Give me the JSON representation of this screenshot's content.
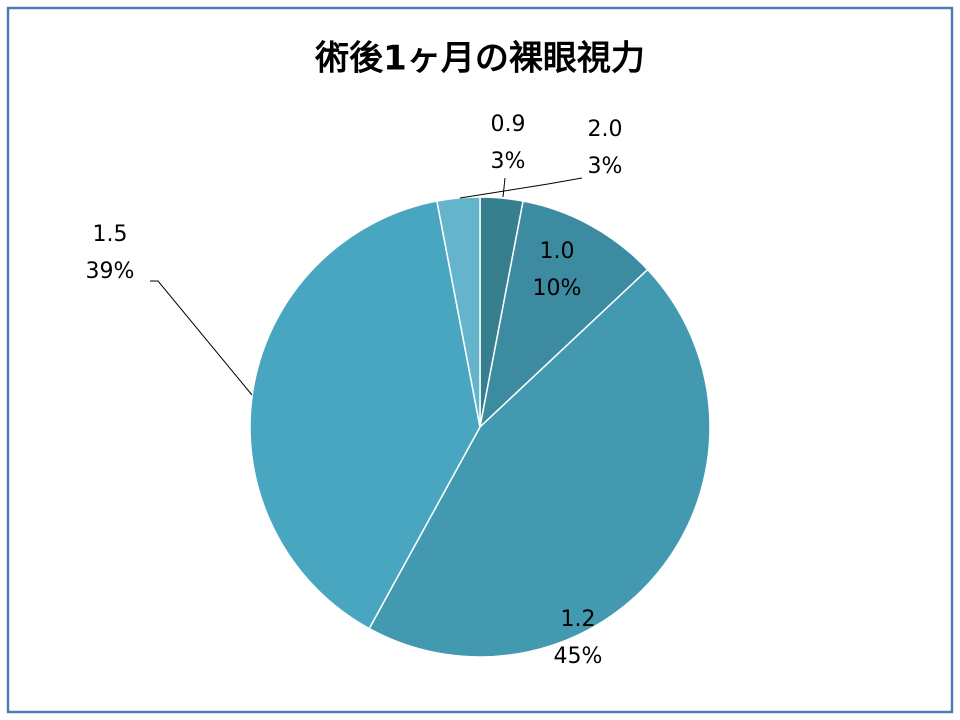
{
  "chart_data": {
    "type": "pie",
    "title": "術後1ヶ月の裸眼視力",
    "categories": [
      "0.9",
      "1.0",
      "1.2",
      "1.5",
      "2.0"
    ],
    "values": [
      3,
      10,
      45,
      39,
      3
    ],
    "value_labels": [
      "3%",
      "10%",
      "45%",
      "39%",
      "3%"
    ],
    "colors": [
      "#367f8f",
      "#3d8ba0",
      "#4299b0",
      "#48a6c1",
      "#64b4cb"
    ]
  }
}
